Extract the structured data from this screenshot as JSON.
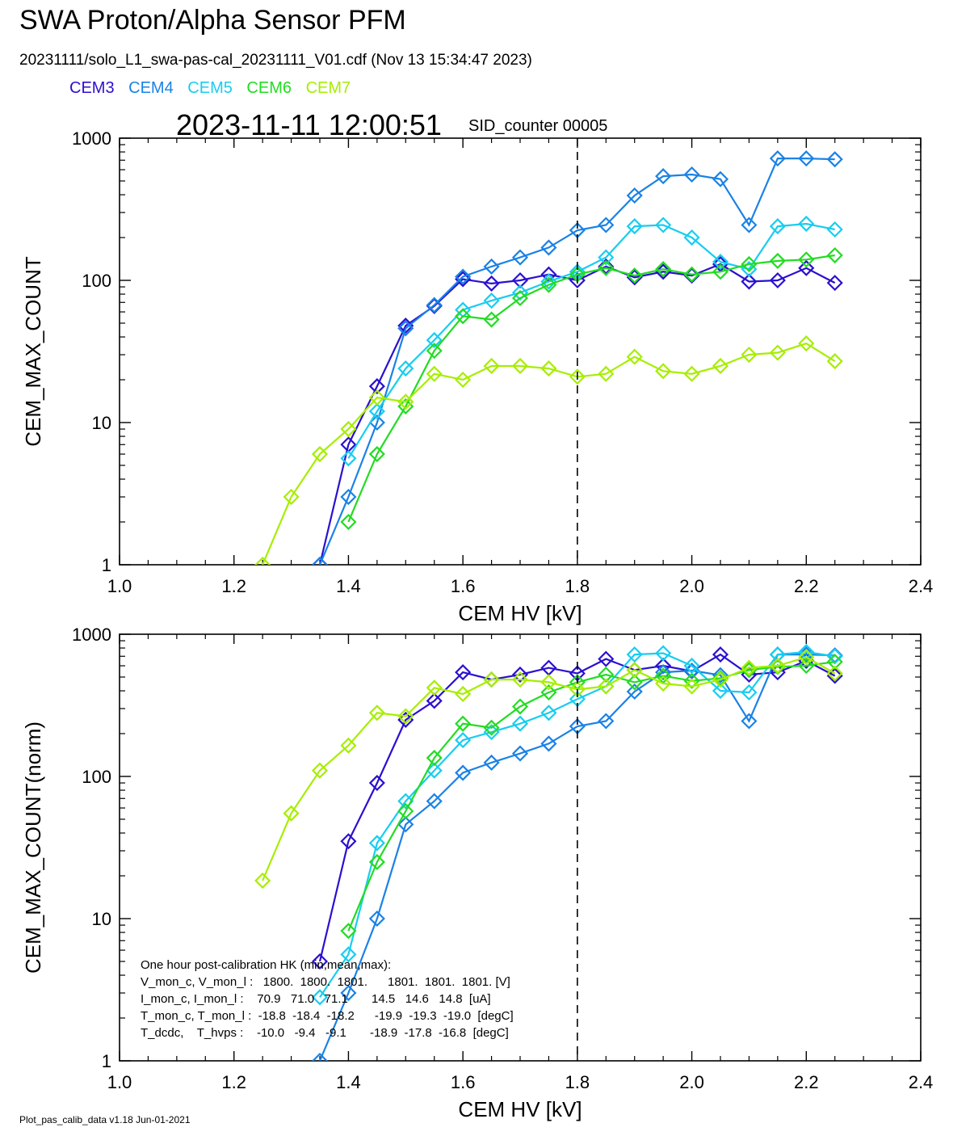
{
  "header": {
    "title": "SWA Proton/Alpha Sensor PFM",
    "file_line": "20231111/solo_L1_swa-pas-cal_20231111_V01.cdf  (Nov 13 15:34:47 2023)",
    "timestamp": "2023-11-11 12:00:51",
    "sid_counter": "SID_counter 00005"
  },
  "legend": [
    {
      "label": "CEM3",
      "color": "#2a10d0"
    },
    {
      "label": "CEM4",
      "color": "#1a82e6"
    },
    {
      "label": "CEM5",
      "color": "#18cdf0"
    },
    {
      "label": "CEM6",
      "color": "#22dc22"
    },
    {
      "label": "CEM7",
      "color": "#a6ee00"
    }
  ],
  "footer": "Plot_pas_calib_data v1.18 Jun-01-2021",
  "hk_box": [
    "One hour post-calibration HK (min,mean,max):",
    "V_mon_c, V_mon_l :   1800.  1800.  1801.      1801.  1801.  1801. [V]",
    "I_mon_c, I_mon_l :    70.9   71.0   71.1       14.5   14.6   14.8  [uA]",
    "T_mon_c, T_mon_l :  -18.8  -18.4  -18.2      -19.9  -19.3  -19.0  [degC]",
    "T_dcdc,    T_hvps :    -10.0   -9.4   -9.1       -18.9  -17.8  -16.8  [degC]"
  ],
  "chart_data": [
    {
      "type": "line",
      "xlabel": "CEM HV [kV]",
      "ylabel": "CEM_MAX_COUNT",
      "xlim": [
        1.0,
        2.4
      ],
      "ylim": [
        1,
        1000
      ],
      "yscale": "log",
      "xticks": [
        "1.0",
        "1.2",
        "1.4",
        "1.6",
        "1.8",
        "2.0",
        "2.2",
        "2.4"
      ],
      "yticks": [
        "1",
        "10",
        "100",
        "1000"
      ],
      "marker": "diamond",
      "vline_x": 1.8,
      "x": [
        1.25,
        1.3,
        1.35,
        1.4,
        1.45,
        1.5,
        1.55,
        1.6,
        1.65,
        1.7,
        1.75,
        1.8,
        1.85,
        1.9,
        1.95,
        2.0,
        2.05,
        2.1,
        2.15,
        2.2,
        2.25
      ],
      "series": [
        {
          "name": "CEM3",
          "color": "#2a10d0",
          "values": [
            null,
            null,
            1,
            7,
            18,
            48,
            66,
            102,
            95,
            100,
            110,
            100,
            125,
            105,
            115,
            108,
            130,
            98,
            100,
            122,
            96
          ]
        },
        {
          "name": "CEM4",
          "color": "#1a82e6",
          "values": [
            null,
            null,
            1,
            3,
            10,
            46,
            67,
            106,
            125,
            145,
            170,
            225,
            245,
            395,
            540,
            555,
            515,
            245,
            720,
            720,
            710
          ]
        },
        {
          "name": "CEM5",
          "color": "#18cdf0",
          "values": [
            null,
            null,
            null,
            5.6,
            12,
            24,
            38,
            62,
            72,
            82,
            98,
            115,
            145,
            240,
            245,
            200,
            135,
            120,
            240,
            250,
            228
          ]
        },
        {
          "name": "CEM6",
          "color": "#22dc22",
          "values": [
            null,
            null,
            null,
            2,
            6,
            13,
            32,
            56,
            53,
            75,
            93,
            110,
            122,
            108,
            120,
            110,
            115,
            130,
            137,
            140,
            150
          ]
        },
        {
          "name": "CEM7",
          "color": "#a6ee00",
          "values": [
            1,
            3,
            6,
            9,
            15,
            14,
            22,
            20,
            25,
            25,
            24,
            21,
            22,
            29,
            23,
            22,
            25,
            30,
            31,
            36,
            27
          ]
        }
      ]
    },
    {
      "type": "line",
      "xlabel": "CEM HV [kV]",
      "ylabel": "CEM_MAX_COUNT(norm)",
      "xlim": [
        1.0,
        2.4
      ],
      "ylim": [
        1,
        1000
      ],
      "yscale": "log",
      "xticks": [
        "1.0",
        "1.2",
        "1.4",
        "1.6",
        "1.8",
        "2.0",
        "2.2",
        "2.4"
      ],
      "yticks": [
        "1",
        "10",
        "100",
        "1000"
      ],
      "marker": "diamond",
      "vline_x": 1.8,
      "x": [
        1.25,
        1.3,
        1.35,
        1.4,
        1.45,
        1.5,
        1.55,
        1.6,
        1.65,
        1.7,
        1.75,
        1.8,
        1.85,
        1.9,
        1.95,
        2.0,
        2.05,
        2.1,
        2.15,
        2.2,
        2.25
      ],
      "series": [
        {
          "name": "CEM3",
          "color": "#2a10d0",
          "values": [
            null,
            null,
            5,
            35,
            90,
            250,
            340,
            540,
            480,
            520,
            580,
            530,
            670,
            560,
            600,
            550,
            720,
            520,
            540,
            650,
            510
          ]
        },
        {
          "name": "CEM4",
          "color": "#1a82e6",
          "values": [
            null,
            null,
            1,
            3,
            10,
            46,
            67,
            106,
            125,
            145,
            170,
            225,
            245,
            395,
            540,
            555,
            515,
            245,
            720,
            720,
            710
          ]
        },
        {
          "name": "CEM5",
          "color": "#18cdf0",
          "values": [
            null,
            null,
            2.8,
            5.6,
            34,
            67,
            110,
            180,
            205,
            235,
            280,
            350,
            430,
            720,
            735,
            600,
            400,
            390,
            720,
            750,
            700
          ]
        },
        {
          "name": "CEM6",
          "color": "#22dc22",
          "values": [
            null,
            null,
            null,
            8.2,
            25,
            57,
            135,
            235,
            220,
            310,
            390,
            460,
            520,
            460,
            510,
            470,
            490,
            560,
            590,
            600,
            640
          ]
        },
        {
          "name": "CEM7",
          "color": "#a6ee00",
          "values": [
            18.5,
            55,
            110,
            165,
            280,
            265,
            420,
            380,
            480,
            480,
            460,
            410,
            430,
            560,
            450,
            430,
            480,
            580,
            600,
            690,
            530
          ]
        }
      ]
    }
  ]
}
